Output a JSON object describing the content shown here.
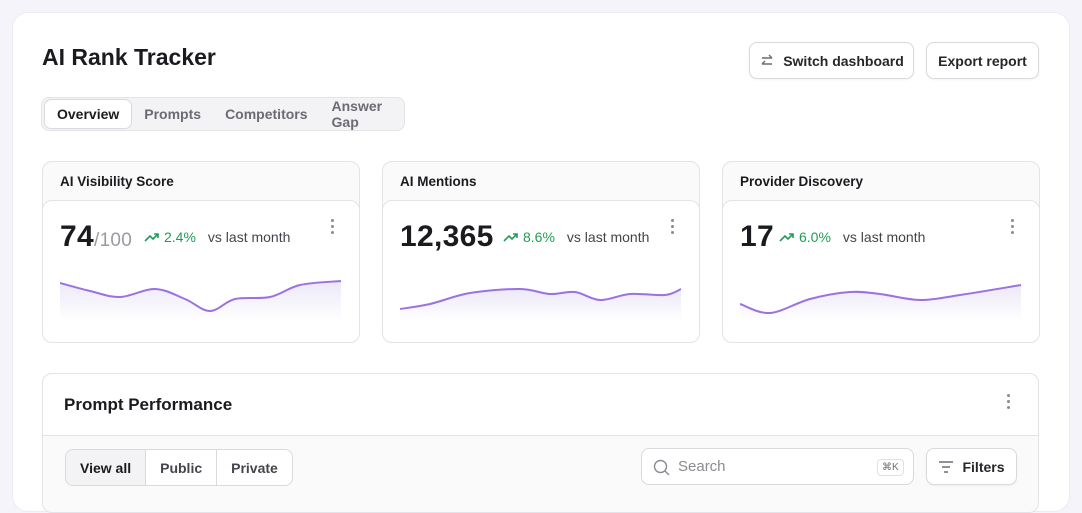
{
  "header": {
    "title": "AI Rank Tracker",
    "actions": [
      "Switch dashboard",
      "Export report"
    ]
  },
  "tabs": [
    "Overview",
    "Prompts",
    "Competitors",
    "Answer Gap"
  ],
  "metrics": [
    {
      "label": "AI Visibility Score",
      "value": "74",
      "suffix": "/100",
      "change": "2.4%",
      "comparison": "vs last month"
    },
    {
      "label": "AI Mentions",
      "value": "12,365",
      "change": "8.6%",
      "comparison": "vs last month"
    },
    {
      "label": "Provider Discovery",
      "value": "17",
      "change": "6.0%",
      "comparison": "vs last month"
    }
  ],
  "prompt_performance": {
    "title": "Prompt Performance",
    "filters": [
      "View all",
      "Public",
      "Private"
    ],
    "search": "Search",
    "shortcut": "⌘K",
    "filters_button": "Filters"
  }
}
